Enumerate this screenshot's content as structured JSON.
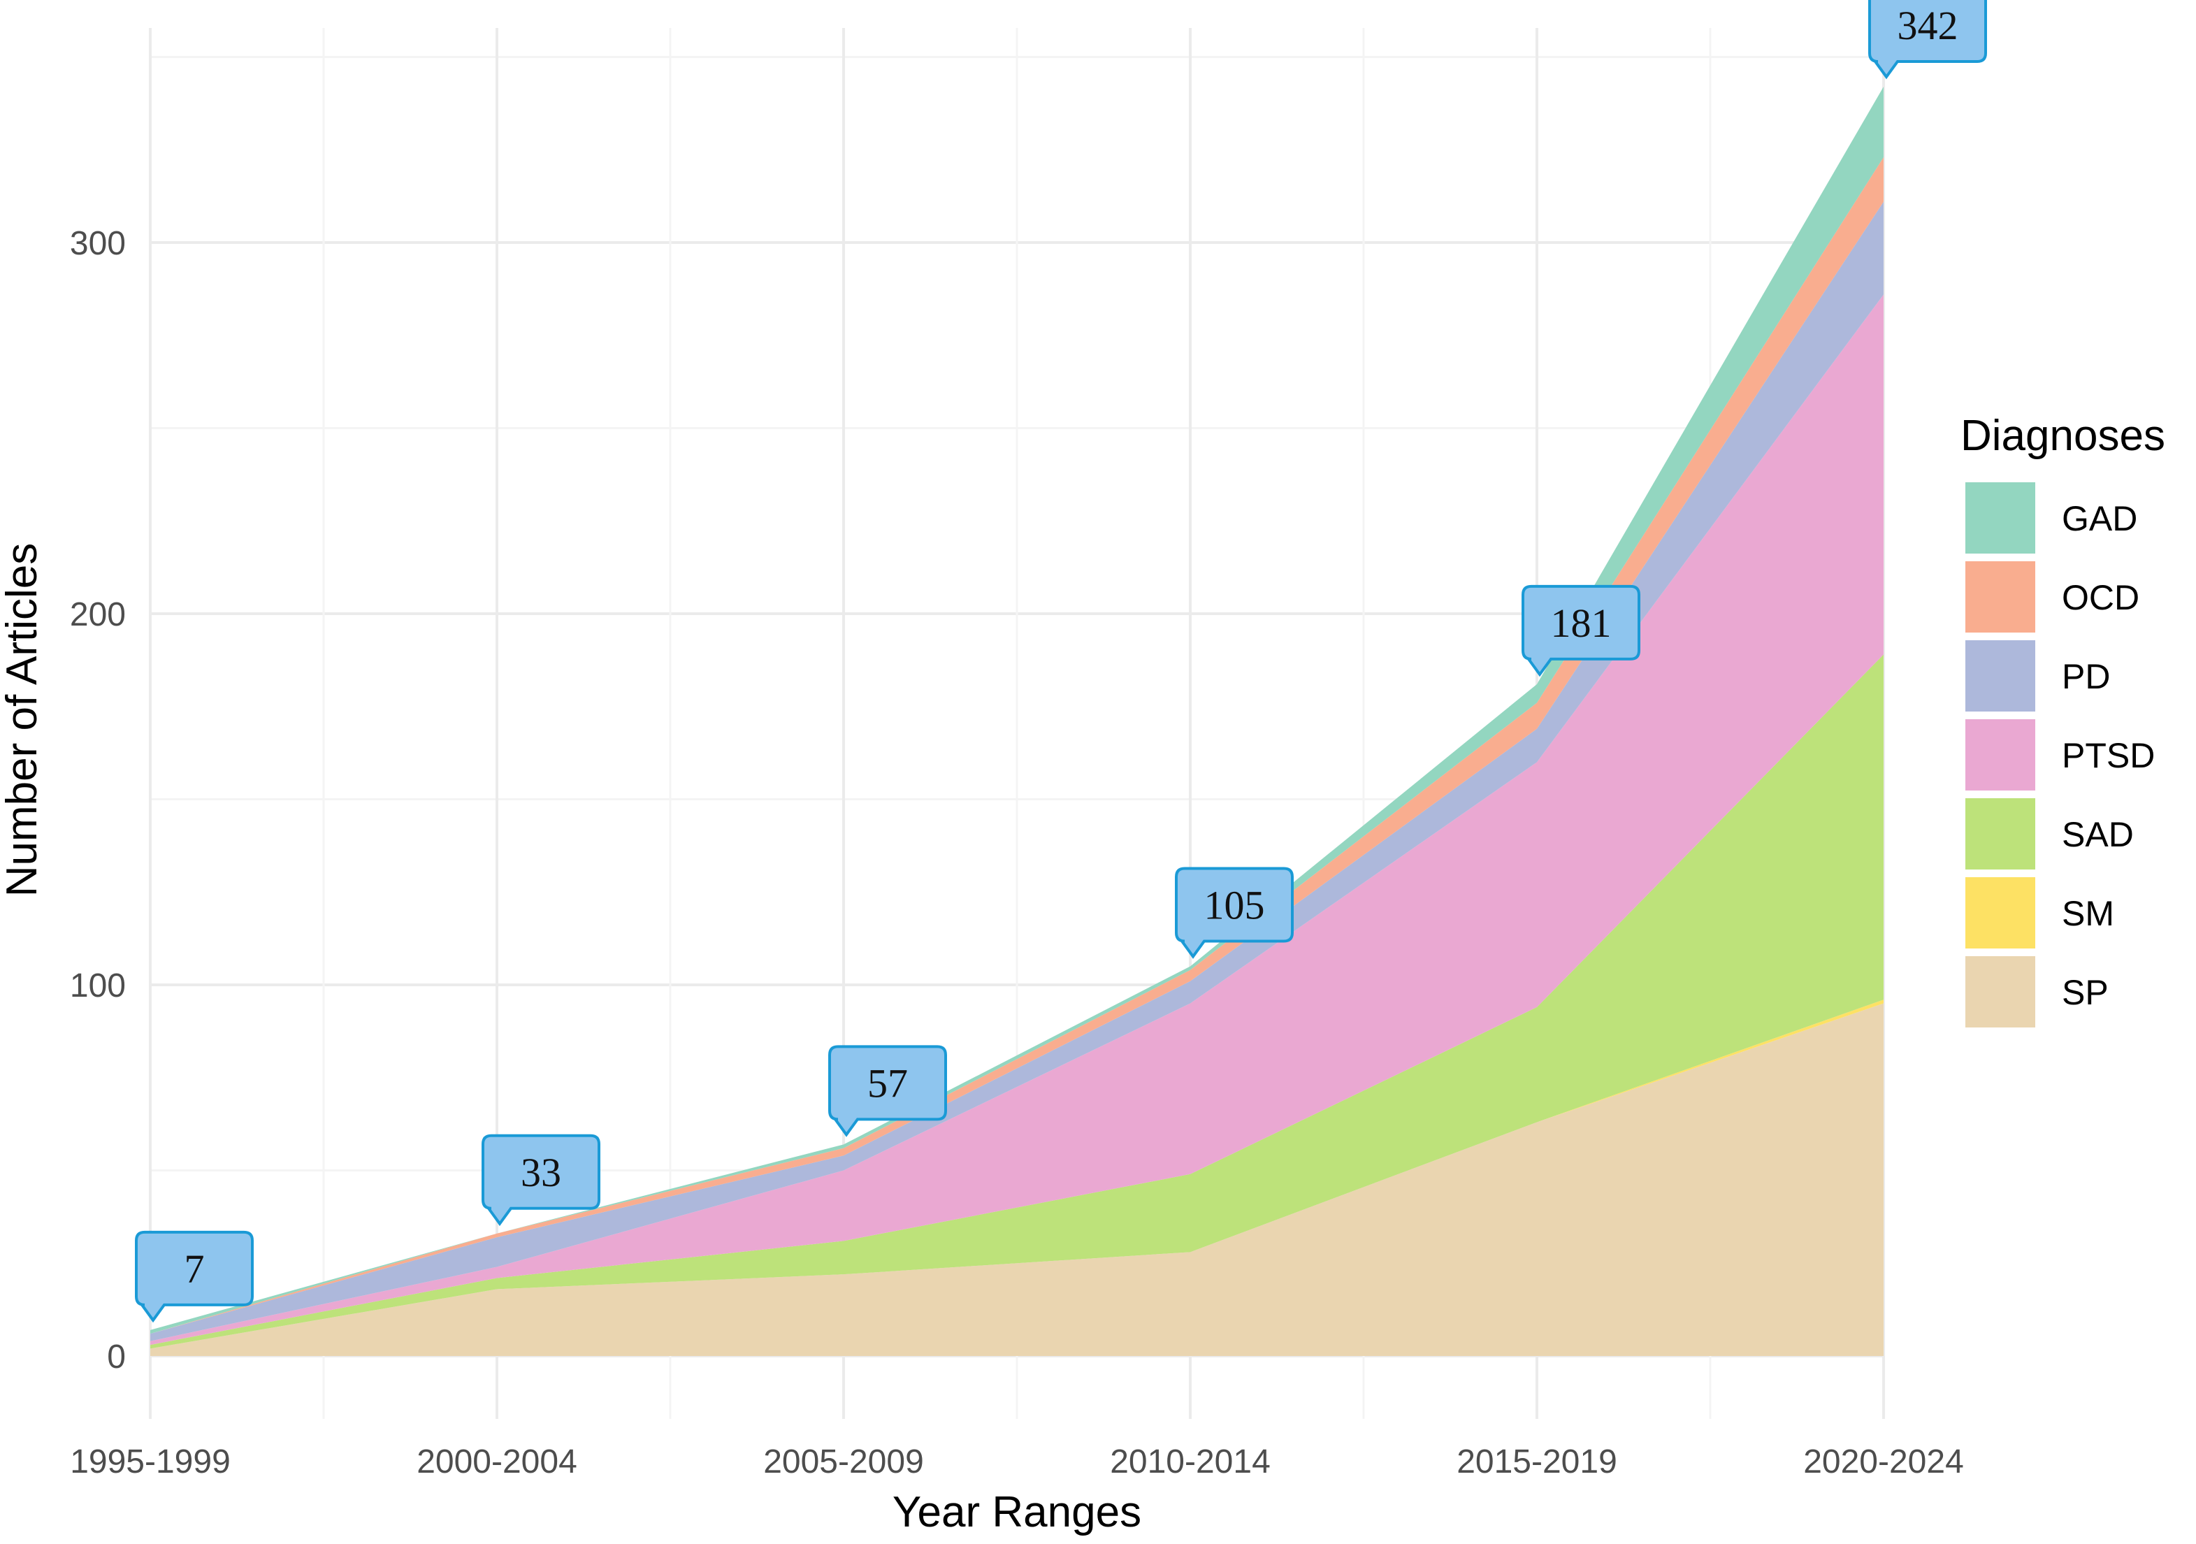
{
  "chart_data": {
    "type": "area",
    "stacked": true,
    "xlabel": "Year Ranges",
    "ylabel": "Number of Articles",
    "ylim": [
      0,
      350
    ],
    "categories": [
      "1995-1999",
      "2000-2004",
      "2005-2009",
      "2010-2014",
      "2015-2019",
      "2020-2024"
    ],
    "yticks": [
      0,
      100,
      200,
      300
    ],
    "legend": {
      "title": "Diagnoses",
      "position": "right"
    },
    "grid": true,
    "series": [
      {
        "name": "SP",
        "color": "#ead5b0",
        "values": [
          2,
          18,
          22,
          28,
          63,
          95
        ]
      },
      {
        "name": "SM",
        "color": "#fde164",
        "values": [
          0,
          0,
          0,
          0,
          0,
          1
        ]
      },
      {
        "name": "SAD",
        "color": "#bde27a",
        "values": [
          1,
          3,
          9,
          21,
          31,
          93
        ]
      },
      {
        "name": "PTSD",
        "color": "#eaa8d2",
        "values": [
          1,
          3,
          19,
          46,
          66,
          97
        ]
      },
      {
        "name": "PD",
        "color": "#adb8db",
        "values": [
          2,
          8,
          4,
          6,
          9,
          25
        ]
      },
      {
        "name": "OCD",
        "color": "#f9ad8f",
        "values": [
          0,
          1,
          2,
          3,
          7,
          12
        ]
      },
      {
        "name": "GAD",
        "color": "#93d6c0",
        "values": [
          1,
          0,
          1,
          1,
          5,
          19
        ]
      }
    ],
    "totals": [
      7,
      33,
      57,
      105,
      181,
      342
    ],
    "callout_color": "#8ec5ee",
    "callout_border": "#1a9ad6"
  }
}
